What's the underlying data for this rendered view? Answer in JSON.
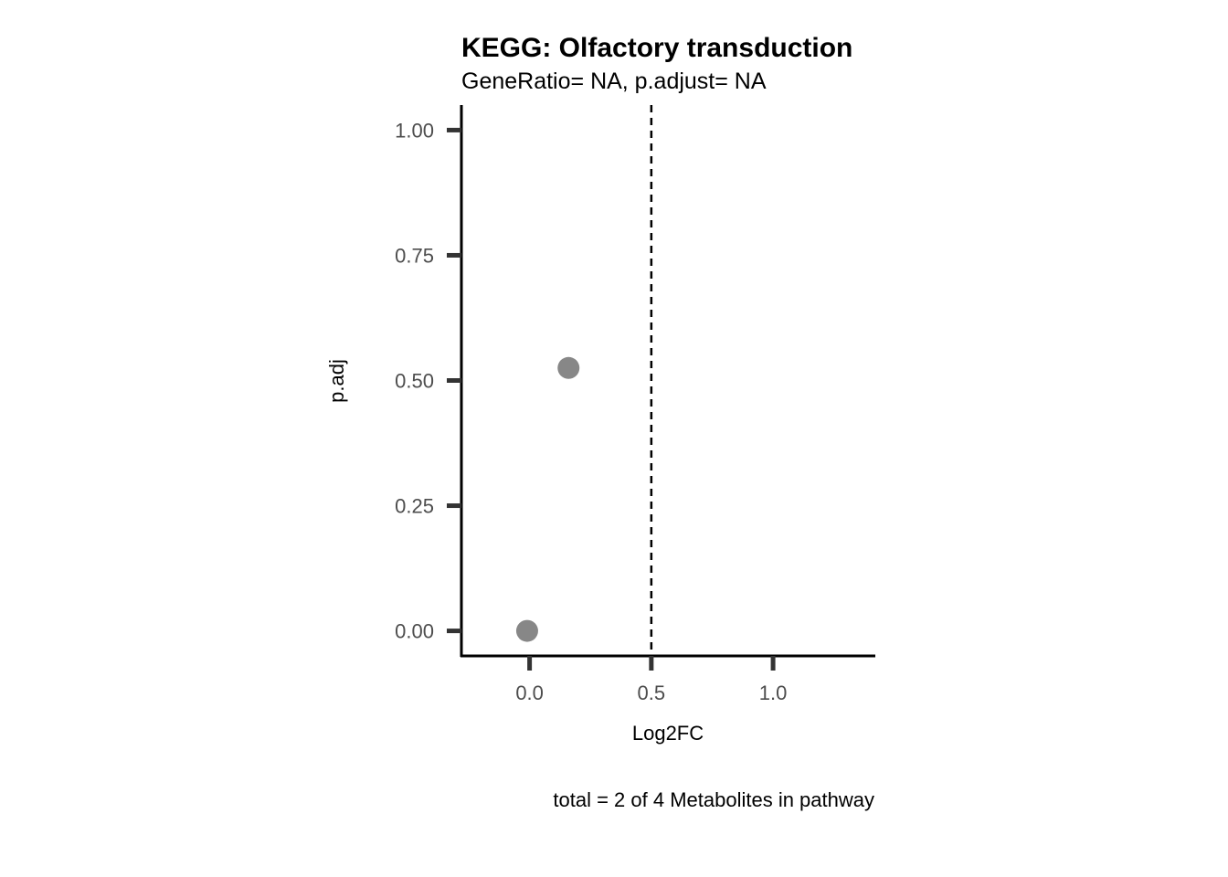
{
  "chart_data": {
    "type": "scatter",
    "title": "KEGG: Olfactory transduction",
    "subtitle": "GeneRatio= NA, p.adjust= NA",
    "xlabel": "Log2FC",
    "ylabel": "p.adj",
    "caption": "total = 2 of 4 Metabolites in pathway",
    "xlim": [
      -0.28,
      1.42
    ],
    "ylim": [
      -0.05,
      1.05
    ],
    "x_ticks": [
      0.0,
      0.5,
      1.0
    ],
    "x_tick_labels": [
      "0.0",
      "0.5",
      "1.0"
    ],
    "y_ticks": [
      0.0,
      0.25,
      0.5,
      0.75,
      1.0
    ],
    "y_tick_labels": [
      "0.00",
      "0.25",
      "0.50",
      "0.75",
      "1.00"
    ],
    "grid": false,
    "reference_line": {
      "x": 0.5,
      "style": "dashed",
      "color": "#000000"
    },
    "points": [
      {
        "x": 0.16,
        "y": 0.525
      },
      {
        "x": -0.01,
        "y": 0.0
      }
    ],
    "point_color": "#878787"
  }
}
